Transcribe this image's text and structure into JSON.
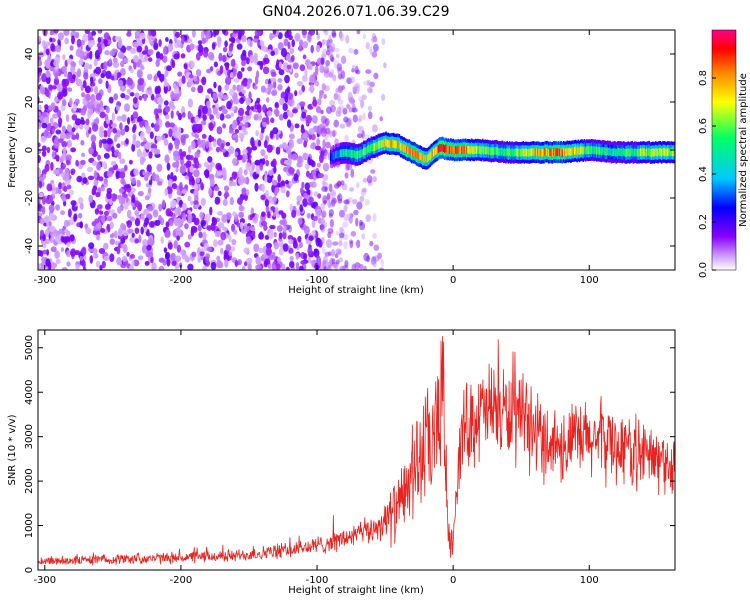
{
  "title": "GN04.2026.071.06.39.C29",
  "chart_data": [
    {
      "type": "heatmap",
      "title": "GN04.2026.071.06.39.C29",
      "xlabel": "Height of straight line (km)",
      "ylabel": "Frequency (Hz)",
      "xlim": [
        -305,
        163
      ],
      "ylim": [
        -50,
        50
      ],
      "x_ticks": [
        "-300",
        "-200",
        "-100",
        "0",
        "100"
      ],
      "y_ticks": [
        "40",
        "20",
        "0",
        "-20",
        "-40"
      ],
      "colorbar": {
        "label": "Normalized spectral amplitude",
        "range": [
          0,
          1
        ],
        "ticks": [
          "0.0",
          "0.2",
          "0.4",
          "0.6",
          "0.8"
        ],
        "colors": [
          "#ffffff",
          "#8800ff",
          "#0000ff",
          "#00c8ff",
          "#00ff66",
          "#ffff00",
          "#ff8800",
          "#ff0000",
          "#ff0088"
        ]
      },
      "noise_region": {
        "x_range": [
          -305,
          -50
        ],
        "typical_amplitude": 0.15
      },
      "signal_trace": {
        "x": [
          -90,
          -80,
          -70,
          -60,
          -50,
          -40,
          -30,
          -20,
          -10,
          0,
          20,
          40,
          60,
          80,
          100,
          120,
          140,
          160
        ],
        "freq": [
          -3,
          -1,
          -2,
          1,
          3,
          2,
          -1,
          -4,
          1,
          0,
          0,
          -1,
          -1,
          -1,
          0,
          -1,
          -1,
          -1
        ],
        "amplitude": [
          0.3,
          0.45,
          0.55,
          0.6,
          0.7,
          0.75,
          0.8,
          0.7,
          0.85,
          0.9,
          0.6,
          0.55,
          0.75,
          0.85,
          0.55,
          0.5,
          0.6,
          0.65
        ]
      },
      "grid": false
    },
    {
      "type": "line",
      "xlabel": "Height of straight line (km)",
      "ylabel": "SNR (10 * v/v)",
      "xlim": [
        -305,
        163
      ],
      "ylim": [
        0,
        5400
      ],
      "x_ticks": [
        "-300",
        "-200",
        "-100",
        "0",
        "100"
      ],
      "y_ticks": [
        "0",
        "1000",
        "2000",
        "3000",
        "4000",
        "5000"
      ],
      "series": [
        {
          "color": "#e8231f",
          "x": [
            -305,
            -280,
            -260,
            -240,
            -220,
            -200,
            -180,
            -160,
            -140,
            -120,
            -100,
            -80,
            -60,
            -50,
            -40,
            -35,
            -30,
            -25,
            -20,
            -15,
            -10,
            -8,
            -6,
            -4,
            -2,
            0,
            5,
            10,
            20,
            30,
            40,
            50,
            60,
            70,
            80,
            90,
            100,
            110,
            120,
            130,
            140,
            150,
            163
          ],
          "values": [
            200,
            220,
            230,
            250,
            260,
            280,
            300,
            320,
            380,
            450,
            550,
            700,
            900,
            1100,
            1400,
            1700,
            2200,
            2500,
            2700,
            2800,
            3200,
            5300,
            2400,
            1200,
            500,
            800,
            2800,
            3300,
            3500,
            3600,
            3500,
            3300,
            3100,
            2900,
            2800,
            2900,
            2900,
            2950,
            2800,
            2700,
            2600,
            2450,
            2350
          ]
        }
      ],
      "grid": false
    }
  ]
}
